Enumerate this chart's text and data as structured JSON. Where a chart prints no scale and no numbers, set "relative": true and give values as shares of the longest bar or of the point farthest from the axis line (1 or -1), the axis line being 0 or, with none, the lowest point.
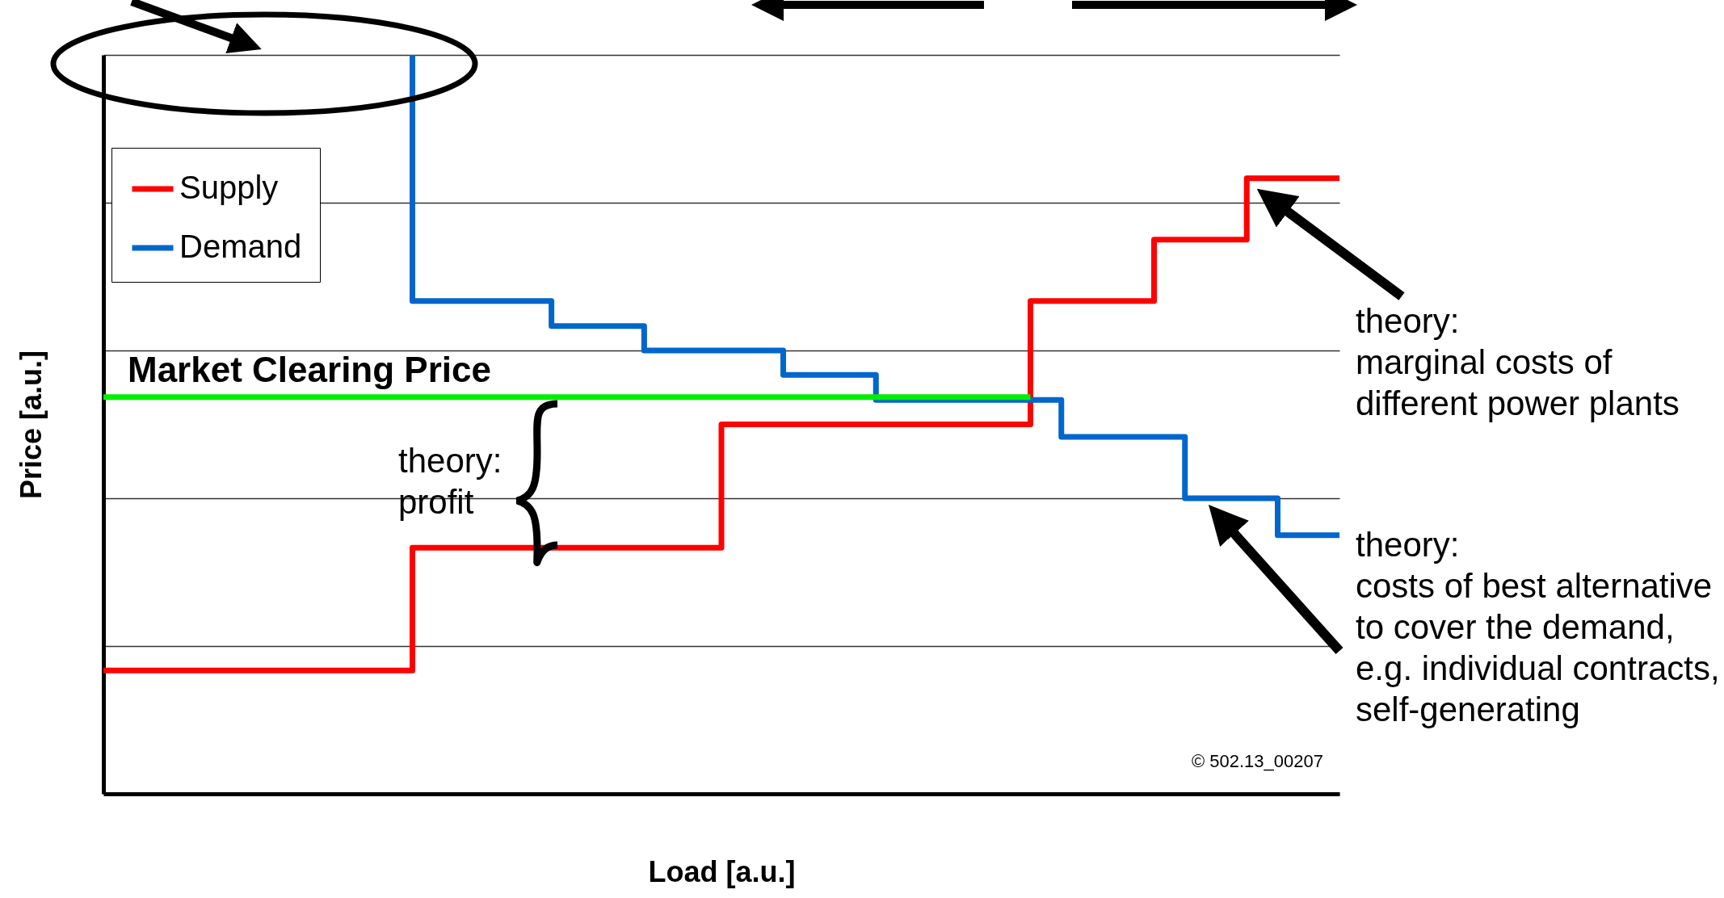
{
  "chart_data": {
    "type": "step",
    "relative": true,
    "xlabel": "Load [a.u.]",
    "ylabel": "Price [a.u.]",
    "tick_labels": false,
    "grid": "y",
    "legend": "top left",
    "line_style": "solid",
    "categories": [
      null,
      null,
      null,
      null,
      null,
      null,
      null,
      null,
      null,
      null,
      null,
      null,
      null,
      null,
      null,
      null,
      null,
      null,
      null,
      null,
      null,
      null,
      null,
      null,
      null,
      null,
      null,
      null,
      null,
      null,
      null,
      null,
      null,
      null,
      null,
      null,
      null,
      null,
      null,
      null,
      null,
      null,
      null,
      null,
      null,
      null,
      null,
      null,
      null,
      null,
      null,
      null,
      null,
      null,
      null,
      null,
      null,
      null,
      null,
      null,
      null,
      null,
      null,
      null,
      null,
      null,
      null,
      null,
      null,
      null,
      null,
      null,
      null,
      null,
      null,
      null,
      null,
      null,
      null,
      null,
      null
    ],
    "series": [
      {
        "name": "Supply",
        "color": "#ff0000",
        "values": [
          0.167,
          0.167,
          0.167,
          0.167,
          0.167,
          0.167,
          0.167,
          0.167,
          0.167,
          0.167,
          0.167,
          0.167,
          0.167,
          0.167,
          0.167,
          0.167,
          0.167,
          0.167,
          0.167,
          0.167,
          0.167,
          0.333,
          0.333,
          0.333,
          0.333,
          0.333,
          0.333,
          0.333,
          0.333,
          0.333,
          0.333,
          0.333,
          0.333,
          0.333,
          0.333,
          0.333,
          0.333,
          0.333,
          0.333,
          0.333,
          0.333,
          0.5,
          0.5,
          0.5,
          0.5,
          0.5,
          0.5,
          0.5,
          0.5,
          0.5,
          0.5,
          0.5,
          0.5,
          0.5,
          0.5,
          0.5,
          0.5,
          0.5,
          0.5,
          0.5,
          0.5,
          0.667,
          0.667,
          0.667,
          0.667,
          0.667,
          0.667,
          0.667,
          0.667,
          0.75,
          0.75,
          0.75,
          0.75,
          0.75,
          0.75,
          0.833,
          0.833,
          0.833,
          0.833,
          0.833,
          0.833
        ]
      },
      {
        "name": "Demand",
        "color": "#0066cc",
        "values": [
          null,
          null,
          null,
          null,
          null,
          null,
          null,
          null,
          null,
          null,
          null,
          null,
          null,
          null,
          null,
          null,
          null,
          null,
          null,
          null,
          1,
          0.667,
          0.667,
          0.667,
          0.667,
          0.667,
          0.667,
          0.667,
          0.667,
          0.667,
          0.633,
          0.633,
          0.633,
          0.633,
          0.633,
          0.633,
          0.6,
          0.6,
          0.6,
          0.6,
          0.6,
          0.6,
          0.6,
          0.6,
          0.6,
          0.567,
          0.567,
          0.567,
          0.567,
          0.567,
          0.567,
          0.533,
          0.533,
          0.533,
          0.533,
          0.533,
          0.533,
          0.533,
          0.533,
          0.533,
          0.533,
          0.533,
          0.533,
          0.483,
          0.483,
          0.483,
          0.483,
          0.483,
          0.483,
          0.483,
          0.483,
          0.4,
          0.4,
          0.4,
          0.4,
          0.4,
          0.4,
          0.35,
          0.35,
          0.35,
          0.35
        ]
      },
      {
        "color": "#00ee00",
        "values": [
          0.537,
          0.537,
          0.537,
          0.537,
          0.537,
          0.537,
          0.537,
          0.537,
          0.537,
          0.537,
          0.537,
          0.537,
          0.537,
          0.537,
          0.537,
          0.537,
          0.537,
          0.537,
          0.537,
          0.537,
          0.537,
          0.537,
          0.537,
          0.537,
          0.537,
          0.537,
          0.537,
          0.537,
          0.537,
          0.537,
          0.537,
          0.537,
          0.537,
          0.537,
          0.537,
          0.537,
          0.537,
          0.537,
          0.537,
          0.537,
          0.537,
          0.537,
          0.537,
          0.537,
          0.537,
          0.537,
          0.537,
          0.537,
          0.537,
          0.537,
          0.537,
          0.537,
          0.537,
          0.537,
          0.537,
          0.537,
          0.537,
          0.537,
          0.537,
          0.537,
          0.537,
          null,
          null,
          null,
          null,
          null,
          null,
          null,
          null,
          null,
          null,
          null,
          null,
          null,
          null,
          null,
          null,
          null,
          null,
          null,
          null
        ]
      }
    ],
    "annotations": [
      {
        "text": "Market Clearing Price",
        "y": 0.537
      },
      "theory:\nprofit",
      "theory:\nmarginal costs of\ndifferent power plants",
      "theory:\ncosts of best alternative\nto cover the demand,\ne.g. individual contracts,\nself-generating",
      "© 502.13_00207"
    ]
  }
}
